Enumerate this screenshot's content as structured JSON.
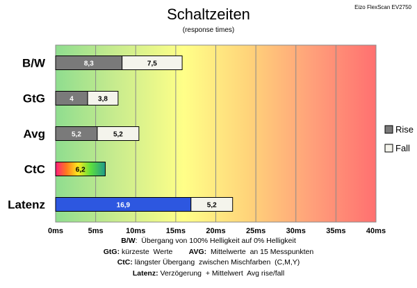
{
  "chart_data": {
    "type": "bar",
    "stacked": true,
    "orientation": "horizontal",
    "title": "Schaltzeiten",
    "subtitle": "(response times)",
    "model": "Eizo FlexScan EV2750",
    "categories": [
      "B/W",
      "GtG",
      "Avg",
      "CtC",
      "Latenz"
    ],
    "series": [
      {
        "name": "Rise",
        "values": [
          8.3,
          4,
          5.2,
          null,
          null
        ],
        "labels": [
          "8,3",
          "4",
          "5,2",
          "",
          ""
        ]
      },
      {
        "name": "Fall",
        "values": [
          7.5,
          3.8,
          5.2,
          null,
          null
        ],
        "labels": [
          "7,5",
          "3,8",
          "5,2",
          "",
          ""
        ]
      },
      {
        "name": "",
        "values": [
          null,
          null,
          null,
          6.2,
          null
        ],
        "labels": [
          "",
          "",
          "",
          "6,2",
          ""
        ],
        "fill": "rainbow"
      },
      {
        "name": "",
        "values": [
          null,
          null,
          null,
          null,
          16.9
        ],
        "labels": [
          "",
          "",
          "",
          "",
          "16,9"
        ],
        "color": "#2d57e0"
      },
      {
        "name": "",
        "values": [
          null,
          null,
          null,
          null,
          5.2
        ],
        "labels": [
          "",
          "",
          "",
          "",
          "5,2"
        ],
        "color": "#f4f4ec"
      }
    ],
    "xlim": [
      0,
      40
    ],
    "xticks": [
      0,
      5,
      10,
      15,
      20,
      25,
      30,
      35,
      40
    ],
    "xtick_labels": [
      "0ms",
      "5ms",
      "10ms",
      "15ms",
      "20ms",
      "25ms",
      "30ms",
      "35ms",
      "40ms"
    ],
    "grid": true,
    "background": "green-yellow-red gradient",
    "legend_position": "right",
    "colors": {
      "rise": "#7a7a7a",
      "fall": "#f4f4ec",
      "latency": "#2d57e0"
    }
  },
  "notes": {
    "line1_key": "B/W",
    "line1_text": ":  Übergang von 100% Helligkeit auf 0% Helligkeit",
    "line2_key_a": "GtG:",
    "line2_text_a": " kürzeste  Werte        ",
    "line2_key_b": "AVG:",
    "line2_text_b": "  Mittelwerte  an 15 Messpunkten",
    "line3_key": "CtC:",
    "line3_text": " längster Übergang  zwischen Mischfarben  (C,M,Y)",
    "line4_key": "Latenz:",
    "line4_text": " Verzögerung  + Mittelwert  Avg rise/fall"
  }
}
